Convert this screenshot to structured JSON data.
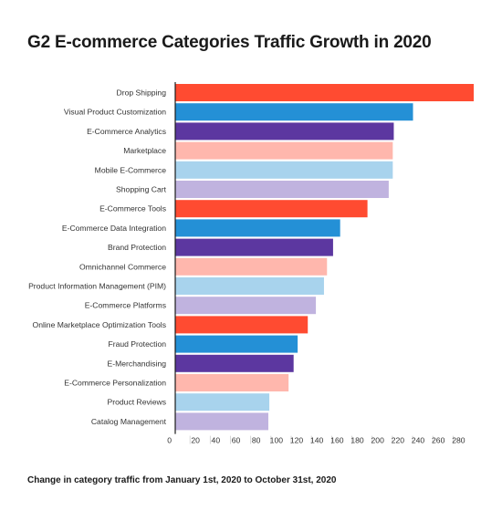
{
  "chart_data": {
    "type": "bar",
    "orientation": "horizontal",
    "title": "G2 E-commerce Categories Traffic Growth in 2020",
    "caption": "Change in category traffic from January 1st, 2020 to October 31st, 2020",
    "xlabel": "",
    "ylabel": "",
    "xlim": [
      0,
      295
    ],
    "xticks": [
      0,
      20,
      40,
      60,
      80,
      100,
      120,
      140,
      160,
      180,
      200,
      220,
      240,
      260,
      280
    ],
    "grid": false,
    "legend": "none",
    "categories": [
      "Drop Shipping",
      "Visual Product Customization",
      "E-Commerce Analytics",
      "Marketplace",
      "Mobile E-Commerce",
      "Shopping Cart",
      "E-Commerce Tools",
      "E-Commerce Data Integration",
      "Brand Protection",
      "Omnichannel Commerce",
      "Product Information Management (PIM)",
      "E-Commerce Platforms",
      "Online Marketplace Optimization Tools",
      "Fraud Protection",
      "E-Merchandising",
      "E-Commerce Personalization",
      "Product Reviews",
      "Catalog Management"
    ],
    "values": [
      295,
      235,
      216,
      215,
      215,
      211,
      190,
      163,
      156,
      150,
      147,
      139,
      131,
      121,
      117,
      112,
      93,
      92
    ],
    "colors": [
      "#ff4b31",
      "#2490d6",
      "#5c37a0",
      "#ffb7ad",
      "#a8d3ed",
      "#c0b3df",
      "#ff4b31",
      "#2490d6",
      "#5c37a0",
      "#ffb7ad",
      "#a8d3ed",
      "#c0b3df",
      "#ff4b31",
      "#2490d6",
      "#5c37a0",
      "#ffb7ad",
      "#a8d3ed",
      "#c0b3df"
    ]
  }
}
